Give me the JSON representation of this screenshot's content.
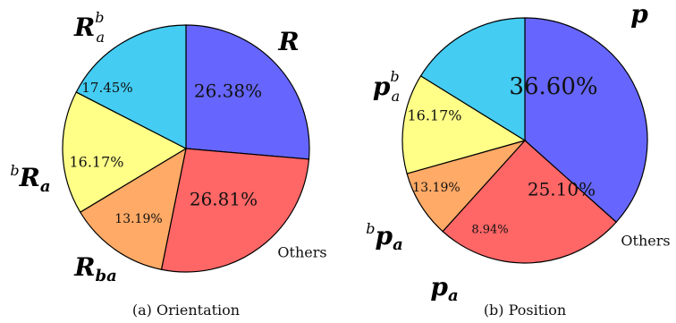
{
  "chart_data": [
    {
      "type": "pie",
      "caption": "(a) Orientation",
      "slices": [
        {
          "label_main": "R",
          "label_sub": "",
          "label_sup": "",
          "label_pre": "",
          "value": 26.38,
          "text": "26.38%",
          "color": "#6666ff"
        },
        {
          "label_main": "Others",
          "label_sub": "",
          "label_sup": "",
          "label_pre": "",
          "value": 26.81,
          "text": "26.81%",
          "color": "#ff6666"
        },
        {
          "label_main": "R",
          "label_sub": "ba",
          "label_sup": "",
          "label_pre": "",
          "value": 13.19,
          "text": "13.19%",
          "color": "#ffaa66"
        },
        {
          "label_main": "R",
          "label_sub": "a",
          "label_sup": "",
          "label_pre": "b",
          "value": 16.17,
          "text": "16.17%",
          "color": "#ffff88"
        },
        {
          "label_main": "R",
          "label_sub": "a",
          "label_sup": "b",
          "label_pre": "",
          "value": 17.45,
          "text": "17.45%",
          "color": "#44ccf2"
        }
      ]
    },
    {
      "type": "pie",
      "caption": "(b) Position",
      "slices": [
        {
          "label_main": "p",
          "label_sub": "",
          "label_sup": "",
          "label_pre": "",
          "value": 36.6,
          "text": "36.60%",
          "color": "#6666ff"
        },
        {
          "label_main": "Others",
          "label_sub": "",
          "label_sup": "",
          "label_pre": "",
          "value": 25.1,
          "text": "25.10%",
          "color": "#ff6666"
        },
        {
          "label_main": "p",
          "label_sub": "a",
          "label_sup": "",
          "label_pre": "",
          "value": 8.94,
          "text": "8.94%",
          "color": "#ffaa66"
        },
        {
          "label_main": "p",
          "label_sub": "a",
          "label_sup": "",
          "label_pre": "b",
          "value": 13.19,
          "text": "13.19%",
          "color": "#ffff88"
        },
        {
          "label_main": "p",
          "label_sub": "a",
          "label_sup": "b",
          "label_pre": "",
          "value": 16.17,
          "text": "16.17%",
          "color": "#44ccf2"
        }
      ]
    }
  ]
}
